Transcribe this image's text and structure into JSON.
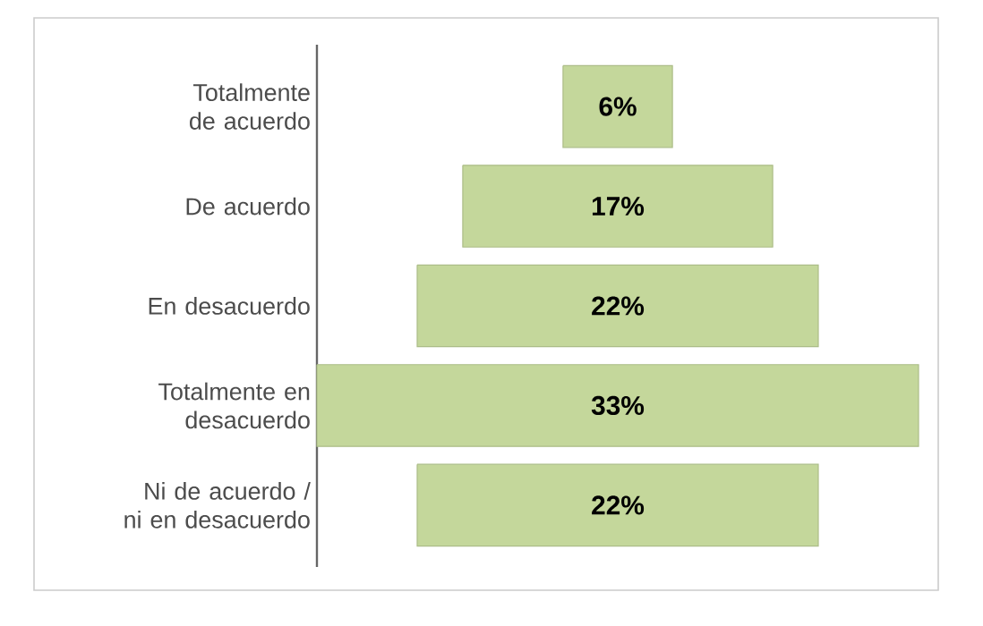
{
  "chart_data": {
    "type": "other",
    "categories": [
      "Totalmente de acuerdo",
      "De acuerdo",
      "En desacuerdo",
      "Totalmente en desacuerdo",
      "Ni de acuerdo / ni en desacuerdo"
    ],
    "values": [
      6,
      17,
      22,
      33,
      22
    ],
    "value_labels": [
      "6%",
      "17%",
      "22%",
      "33%",
      "22%"
    ],
    "color": "#c4d79b"
  }
}
